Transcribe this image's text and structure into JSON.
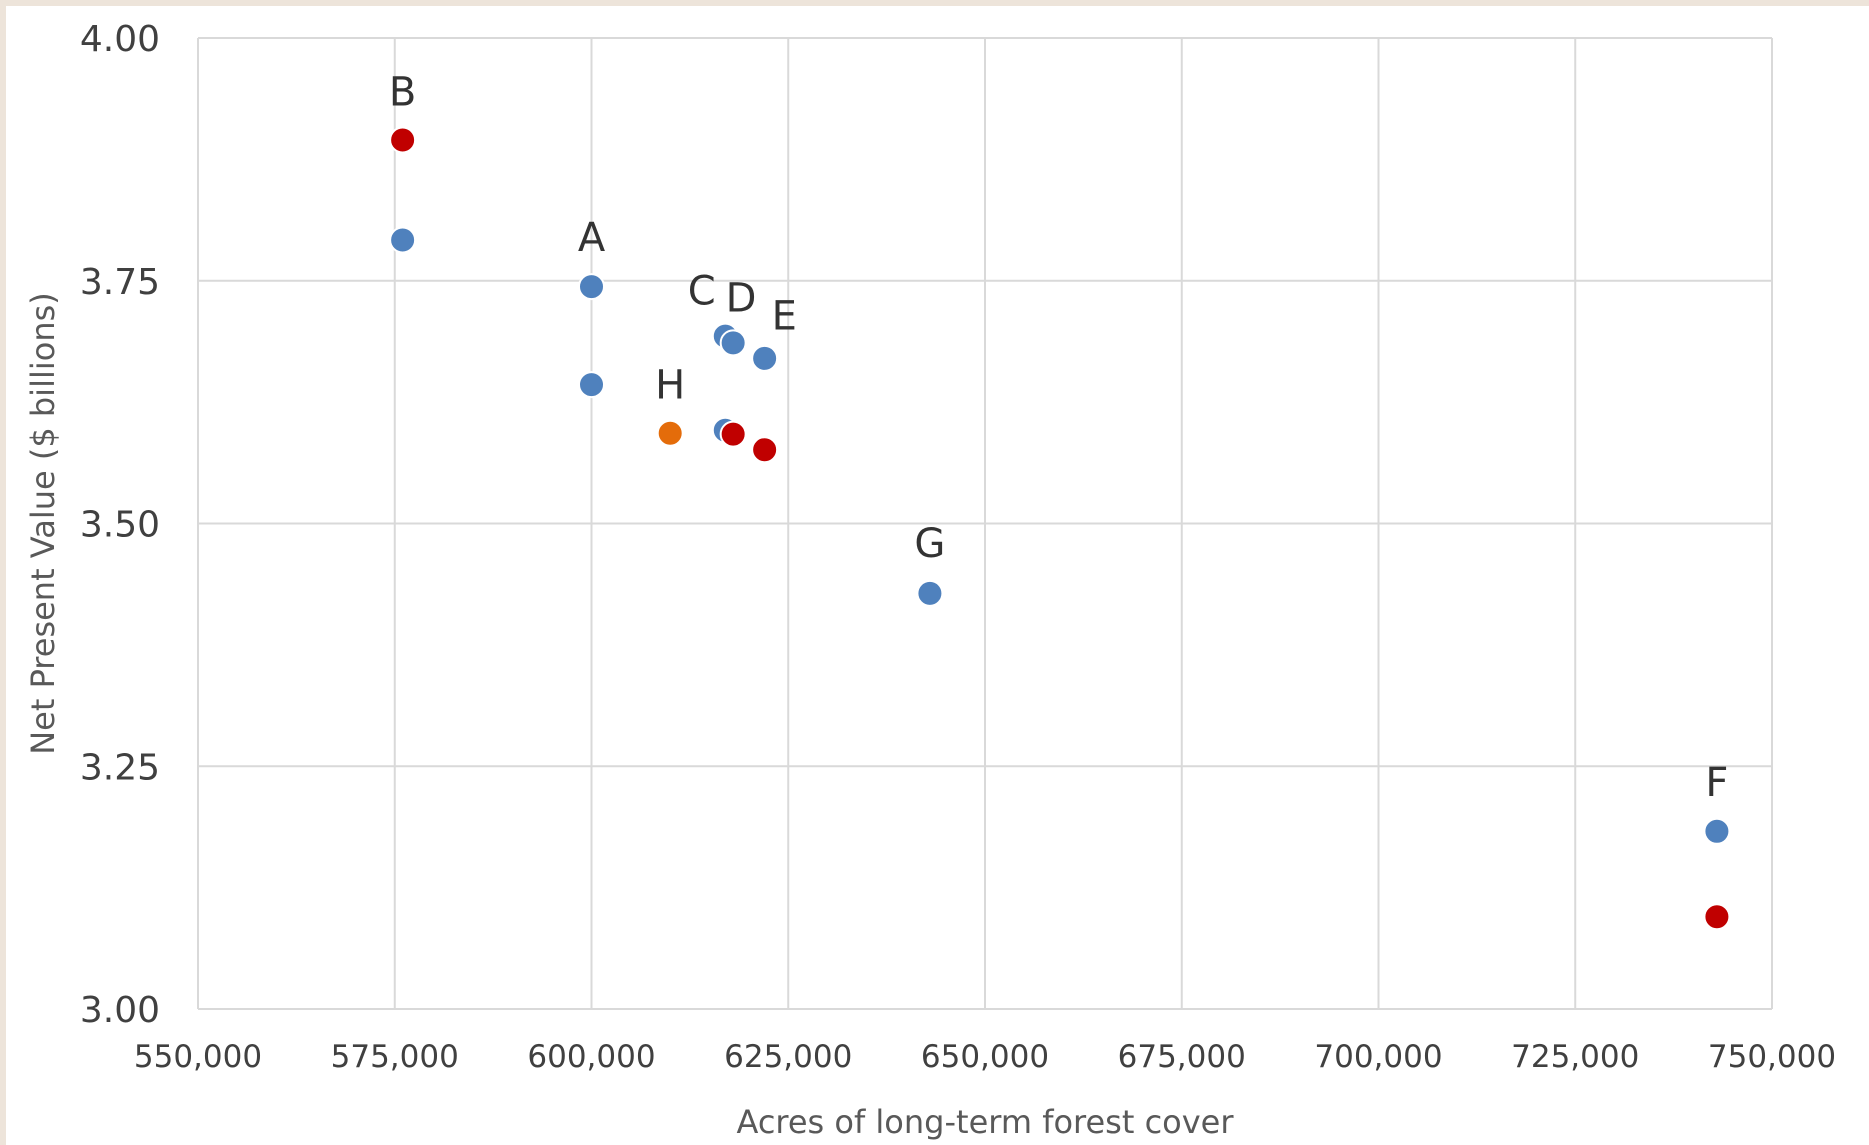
{
  "chart_data": {
    "type": "scatter",
    "title": "",
    "xlabel": "Acres of long-term forest cover",
    "ylabel": "Net Present Value ($ billions)",
    "xlim": [
      550000,
      750000
    ],
    "ylim": [
      3.0,
      4.0
    ],
    "x_ticks": [
      550000,
      575000,
      600000,
      625000,
      650000,
      675000,
      700000,
      725000,
      750000
    ],
    "x_tick_labels": [
      "550,000",
      "575,000",
      "600,000",
      "625,000",
      "650,000",
      "675,000",
      "700,000",
      "725,000",
      "750,000"
    ],
    "y_ticks": [
      3.0,
      3.25,
      3.5,
      3.75,
      4.0
    ],
    "y_tick_labels": [
      "3.00",
      "3.25",
      "3.50",
      "3.75",
      "4.00"
    ],
    "grid": true,
    "legend": "none",
    "colors": {
      "blue": "#4f81bd",
      "red": "#c00000",
      "orange": "#e46c0a"
    },
    "points": [
      {
        "x": 576000,
        "y": 3.895,
        "color": "red"
      },
      {
        "x": 576000,
        "y": 3.792,
        "color": "blue"
      },
      {
        "x": 600000,
        "y": 3.744,
        "color": "blue"
      },
      {
        "x": 600000,
        "y": 3.643,
        "color": "blue"
      },
      {
        "x": 610000,
        "y": 3.593,
        "color": "orange"
      },
      {
        "x": 617000,
        "y": 3.693,
        "color": "blue"
      },
      {
        "x": 618000,
        "y": 3.686,
        "color": "blue"
      },
      {
        "x": 622000,
        "y": 3.67,
        "color": "blue"
      },
      {
        "x": 617000,
        "y": 3.596,
        "color": "blue"
      },
      {
        "x": 618000,
        "y": 3.592,
        "color": "red"
      },
      {
        "x": 622000,
        "y": 3.576,
        "color": "red"
      },
      {
        "x": 643000,
        "y": 3.428,
        "color": "blue"
      },
      {
        "x": 743000,
        "y": 3.183,
        "color": "blue"
      },
      {
        "x": 743000,
        "y": 3.095,
        "color": "red"
      }
    ],
    "annotations": [
      {
        "text": "B",
        "x": 576000,
        "y": 3.945
      },
      {
        "text": "A",
        "x": 600000,
        "y": 3.795
      },
      {
        "text": "C",
        "x": 614000,
        "y": 3.74
      },
      {
        "text": "D",
        "x": 619000,
        "y": 3.733
      },
      {
        "text": "E",
        "x": 624500,
        "y": 3.714
      },
      {
        "text": "H",
        "x": 610000,
        "y": 3.643
      },
      {
        "text": "G",
        "x": 643000,
        "y": 3.48
      },
      {
        "text": "F",
        "x": 743000,
        "y": 3.234
      }
    ]
  }
}
